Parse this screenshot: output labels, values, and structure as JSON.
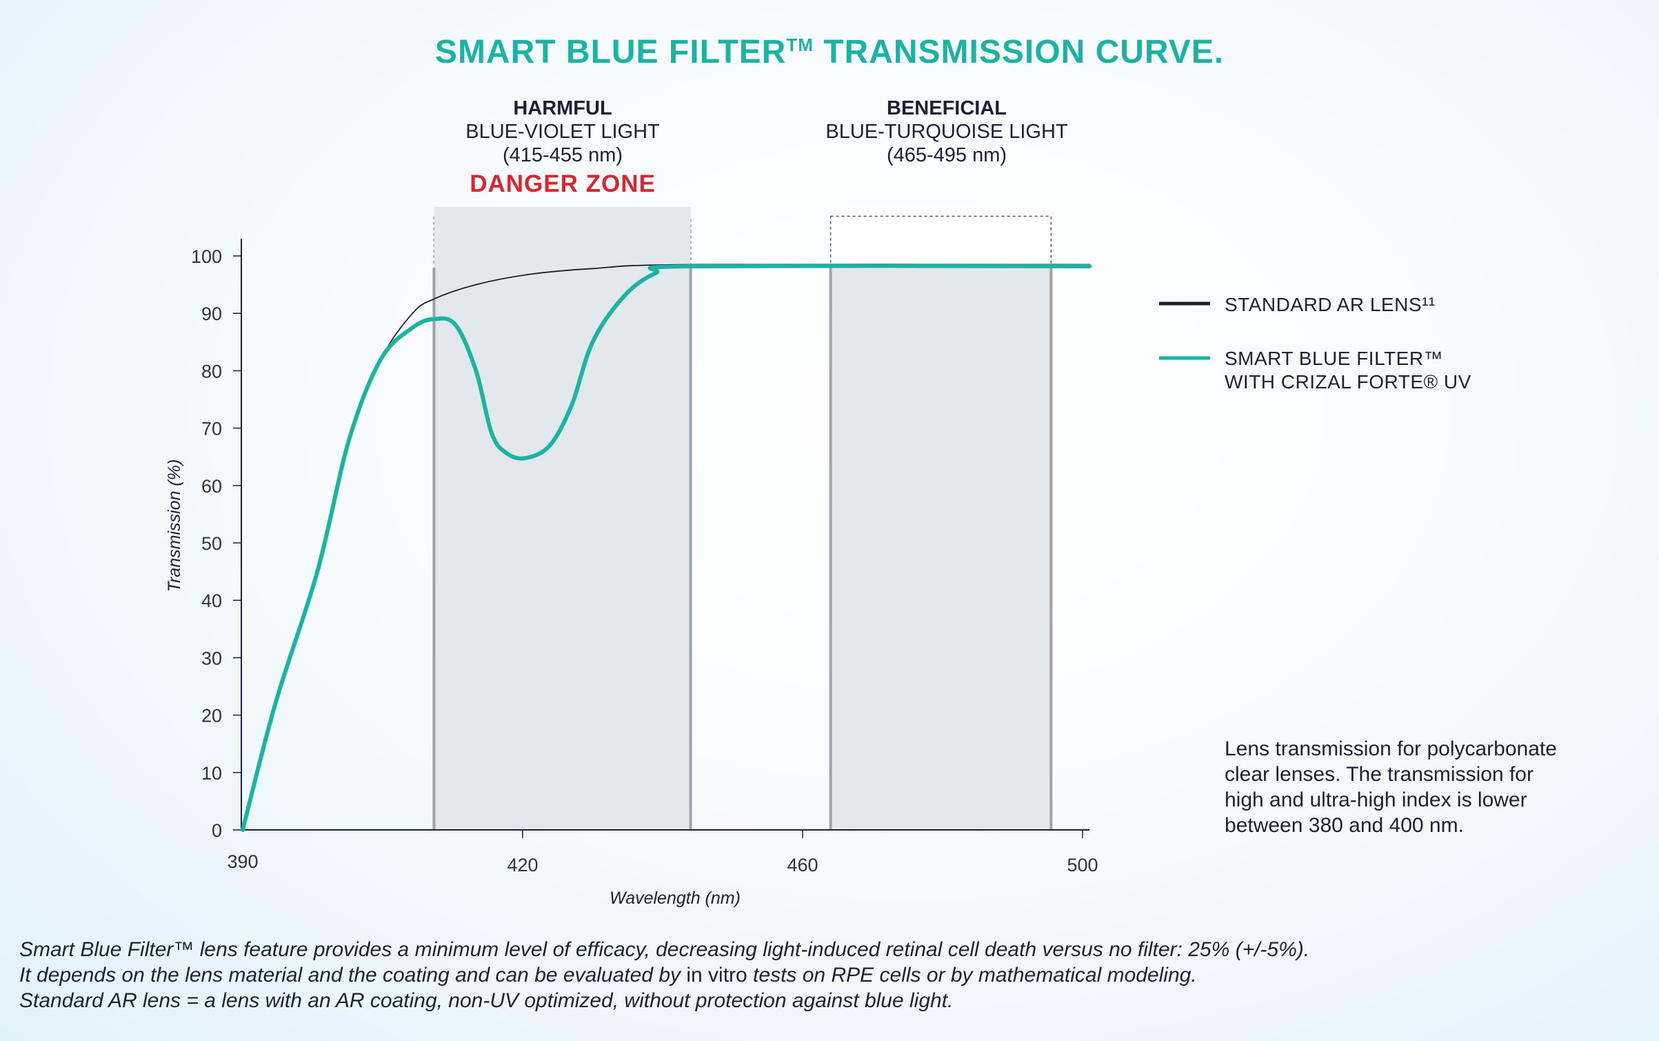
{
  "title": {
    "main": "SMART BLUE FILTER",
    "tm": "TM",
    "rest": " TRANSMISSION CURVE."
  },
  "harmful": {
    "heading": "HARMFUL",
    "line1": "BLUE-VIOLET LIGHT",
    "line2": "(415-455 nm)",
    "zone": "DANGER ZONE"
  },
  "beneficial": {
    "heading": "BENEFICIAL",
    "line1": "BLUE-TURQUOISE LIGHT",
    "line2": "(465-495 nm)"
  },
  "legend": {
    "standard": "STANDARD AR LENS¹¹",
    "smart_line1": "SMART BLUE FILTER™",
    "smart_line2": "WITH CRIZAL FORTE® UV"
  },
  "note": [
    "Lens transmission for polycarbonate",
    "clear lenses. The transmission for",
    "high and ultra-high index is lower",
    "between 380 and 400 nm."
  ],
  "footnote": {
    "line1": "Smart Blue Filter™ lens feature provides a minimum level of efficacy, decreasing light-induced retinal cell death versus no filter: 25% (+/-5%).",
    "line2a": "It depends on the lens material and the coating and can be evaluated by ",
    "line2b": "in vitro",
    "line2c": " tests on RPE cells or by mathematical modeling.",
    "line3": "Standard AR lens = a lens with an AR coating, non-UV optimized, without protection against blue light."
  },
  "colors": {
    "teal": "#1bb3a4",
    "standard": "#1b1f2a",
    "danger": "#d8262e",
    "band": "#e3e8ec"
  },
  "chart_data": {
    "type": "line",
    "xlabel": "Wavelength (nm)",
    "ylabel": "Transmission (%)",
    "xticks": [
      390,
      420,
      460,
      500
    ],
    "yticks": [
      0,
      10,
      20,
      30,
      40,
      50,
      60,
      70,
      80,
      90,
      100
    ],
    "ylim": [
      0,
      100
    ],
    "xlim": [
      390,
      501
    ],
    "bands": [
      {
        "label": "harmful",
        "from": 410.5,
        "to": 444
      },
      {
        "label": "beneficial",
        "from": 464,
        "to": 495.5
      }
    ],
    "series": [
      {
        "name": "STANDARD AR LENS¹¹",
        "color": "#1b1f2a",
        "x": [
          390,
          393.5,
          398,
          401.4,
          404.8,
          408.2,
          410.5,
          415,
          421,
          430,
          444,
          501
        ],
        "y": [
          0,
          22,
          45,
          68,
          82,
          90,
          92.5,
          95,
          96.8,
          97.8,
          98.5,
          98.5
        ]
      },
      {
        "name": "SMART BLUE FILTER™ WITH CRIZAL FORTE® UV",
        "color": "#1bb3a4",
        "x": [
          390,
          393.5,
          398,
          401.4,
          404.8,
          408.2,
          410.5,
          412.8,
          415,
          416.7,
          418.4,
          420.5,
          423.9,
          427,
          430,
          434.5,
          439,
          444,
          501
        ],
        "y": [
          0,
          22,
          45,
          68,
          82,
          87.5,
          89,
          88,
          80,
          69,
          65.5,
          64.8,
          67,
          74,
          85,
          93,
          97,
          98.2,
          98.2
        ]
      }
    ]
  }
}
